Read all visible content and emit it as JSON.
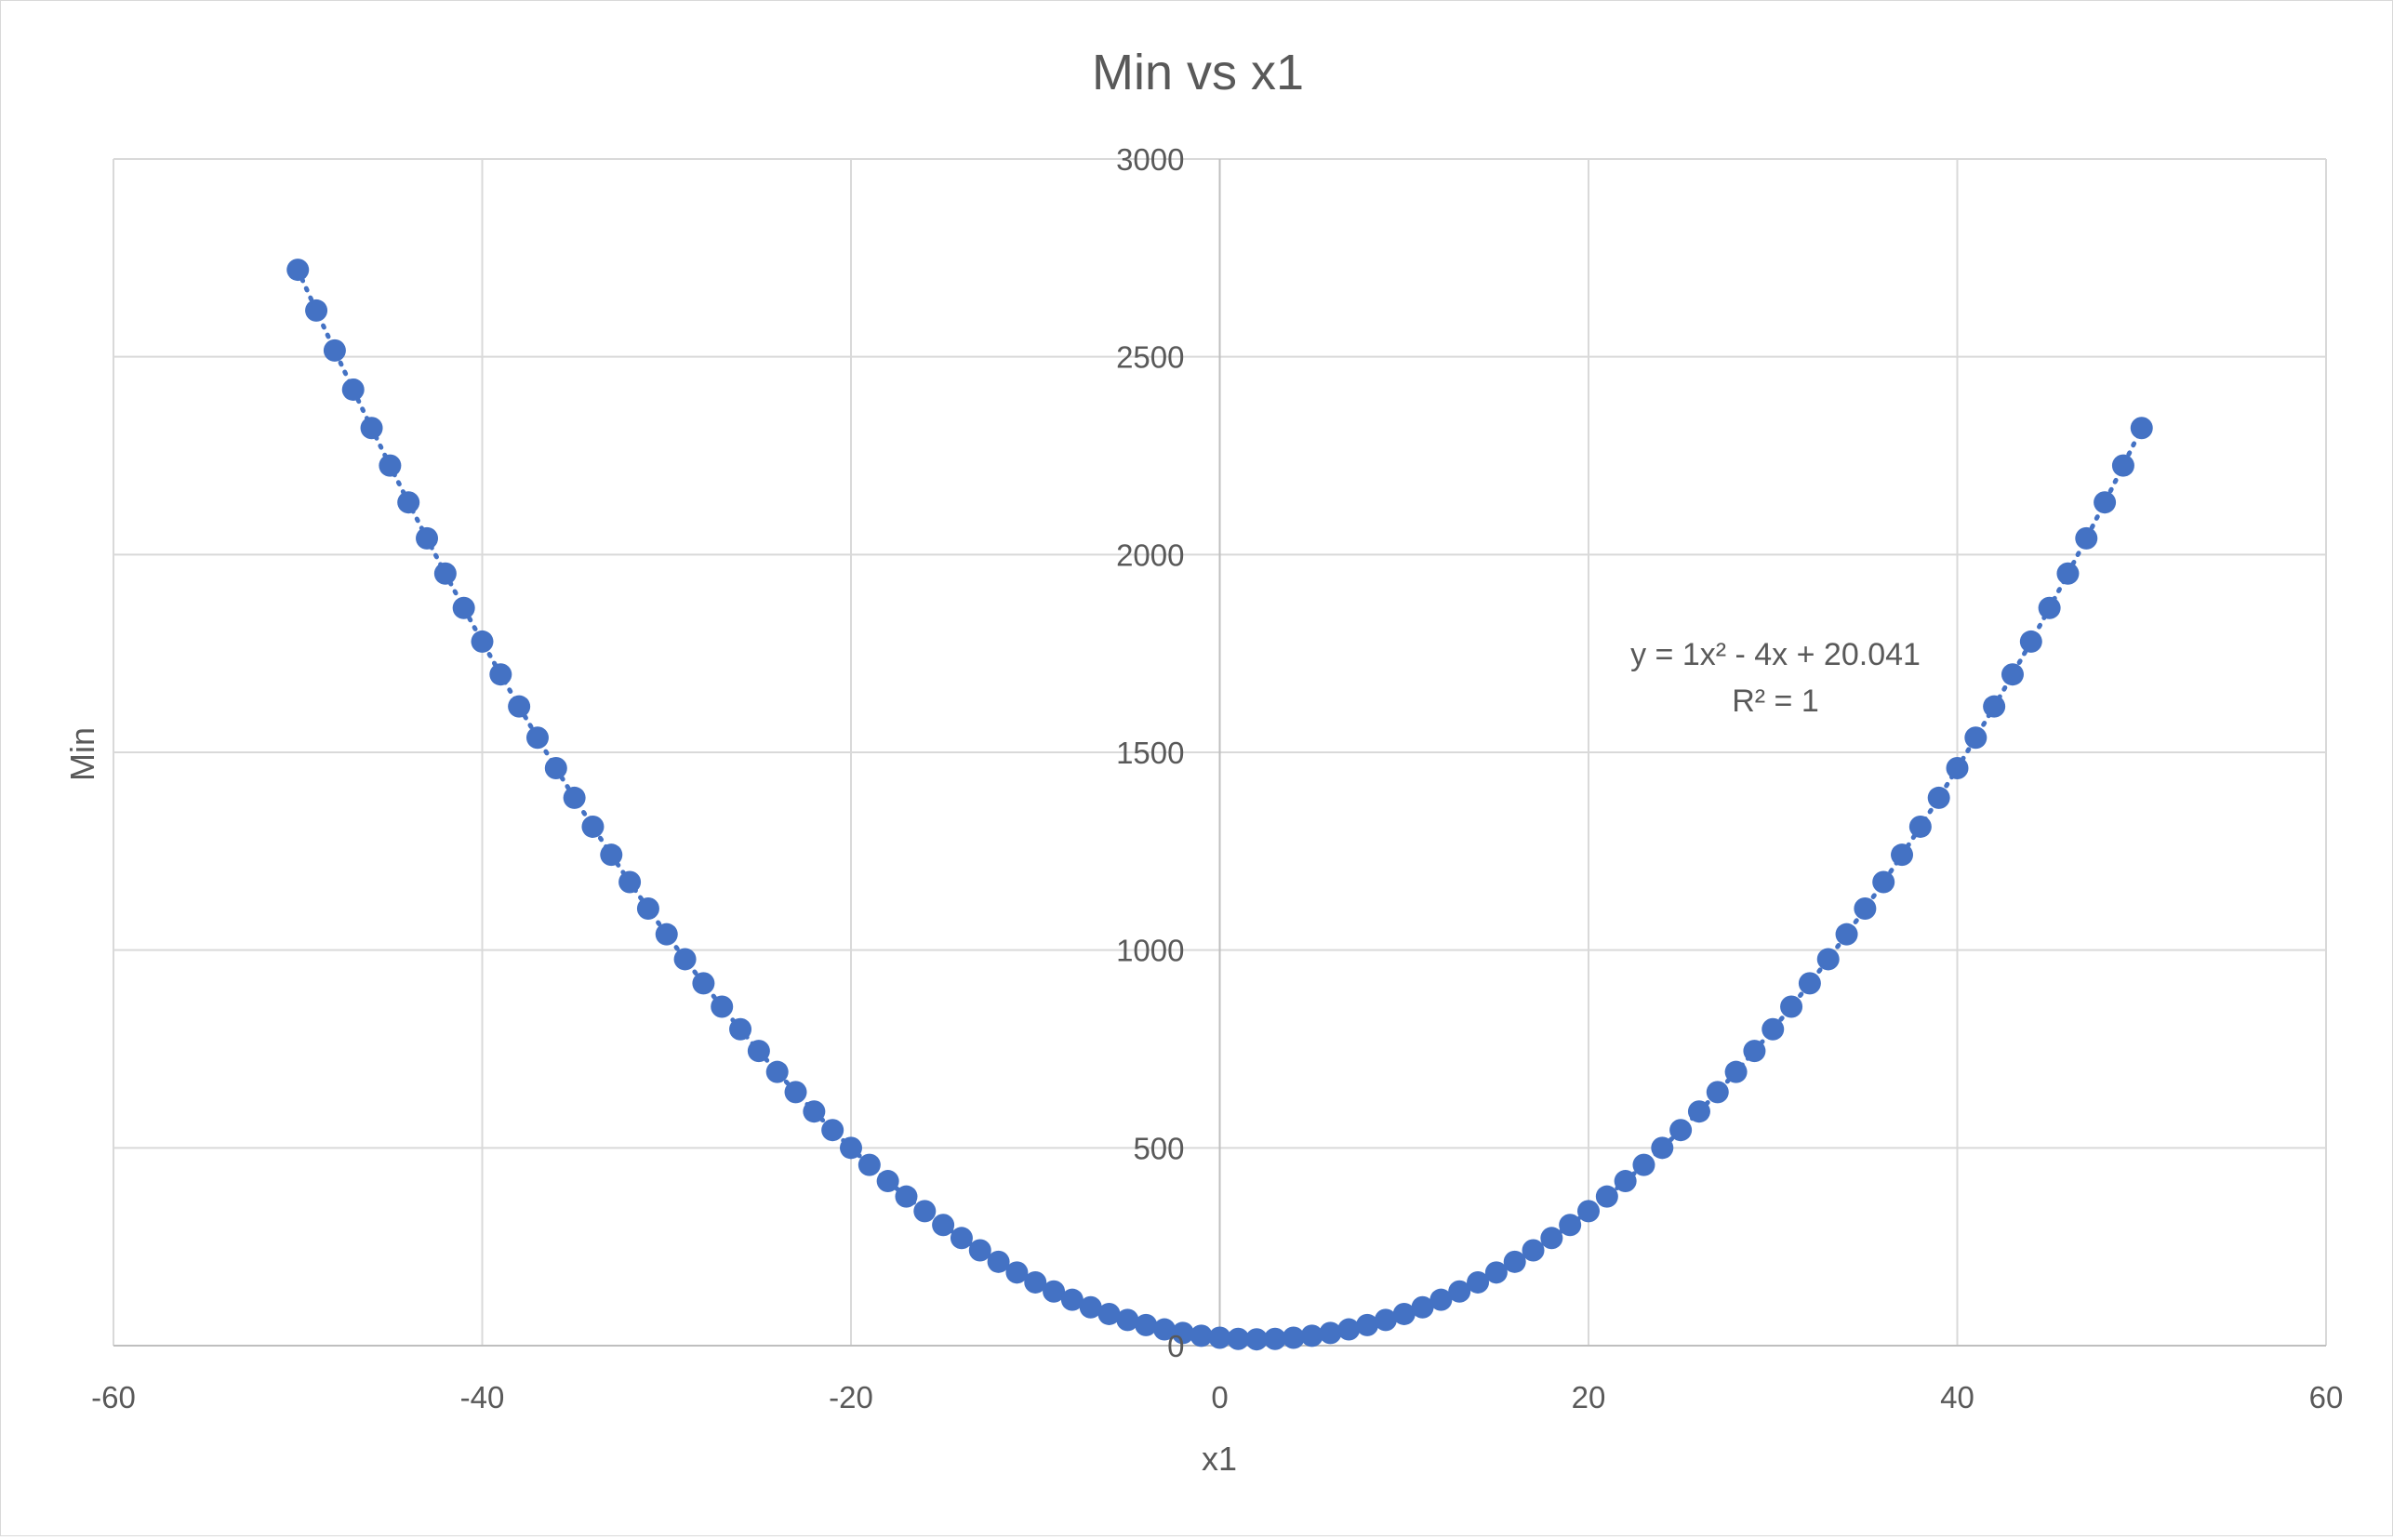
{
  "chart_data": {
    "type": "scatter",
    "title": "Min vs x1",
    "xlabel": "x1",
    "ylabel": "Min",
    "xlim": [
      -60,
      60
    ],
    "ylim": [
      0,
      3000
    ],
    "xticks": [
      -60,
      -40,
      -20,
      0,
      20,
      40,
      60
    ],
    "yticks": [
      0,
      500,
      1000,
      1500,
      2000,
      2500,
      3000
    ],
    "grid": true,
    "marker_color": "#4472c4",
    "trendline": {
      "type": "polynomial",
      "order": 2,
      "coefficients": [
        1,
        -4,
        20.041
      ],
      "equation_text": "y = 1x² - 4x + 20.041",
      "r2_text": "R² = 1"
    },
    "series": [
      {
        "x": [
          -50,
          -49,
          -48,
          -47,
          -46,
          -45,
          -44,
          -43,
          -42,
          -41,
          -40,
          -39,
          -38,
          -37,
          -36,
          -35,
          -34,
          -33,
          -32,
          -31,
          -30,
          -29,
          -28,
          -27,
          -26,
          -25,
          -24,
          -23,
          -22,
          -21,
          -20,
          -19,
          -18,
          -17,
          -16,
          -15,
          -14,
          -13,
          -12,
          -11,
          -10,
          -9,
          -8,
          -7,
          -6,
          -5,
          -4,
          -3,
          -2,
          -1,
          0,
          1,
          2,
          3,
          4,
          5,
          6,
          7,
          8,
          9,
          10,
          11,
          12,
          13,
          14,
          15,
          16,
          17,
          18,
          19,
          20,
          21,
          22,
          23,
          24,
          25,
          26,
          27,
          28,
          29,
          30,
          31,
          32,
          33,
          34,
          35,
          36,
          37,
          38,
          39,
          40,
          41,
          42,
          43,
          44,
          45,
          46,
          47,
          48,
          49,
          50
        ],
        "y": [
          2720,
          2617,
          2516,
          2417,
          2320,
          2225,
          2132,
          2041,
          1952,
          1865,
          1780,
          1697,
          1616,
          1537,
          1460,
          1385,
          1312,
          1241,
          1172,
          1105,
          1040,
          977,
          916,
          857,
          800,
          745,
          692,
          641,
          592,
          545,
          500,
          457,
          416,
          377,
          340,
          305,
          272,
          241,
          212,
          185,
          160,
          137,
          116,
          97,
          80,
          65,
          52,
          41,
          32,
          25,
          20,
          17,
          16,
          17,
          20,
          25,
          32,
          41,
          52,
          65,
          80,
          97,
          116,
          137,
          160,
          185,
          212,
          241,
          272,
          305,
          340,
          377,
          416,
          457,
          500,
          545,
          592,
          641,
          692,
          745,
          800,
          857,
          916,
          977,
          1040,
          1105,
          1172,
          1241,
          1312,
          1385,
          1460,
          1537,
          1616,
          1697,
          1780,
          1865,
          1952,
          2041,
          2132,
          2225,
          2320
        ]
      }
    ]
  }
}
